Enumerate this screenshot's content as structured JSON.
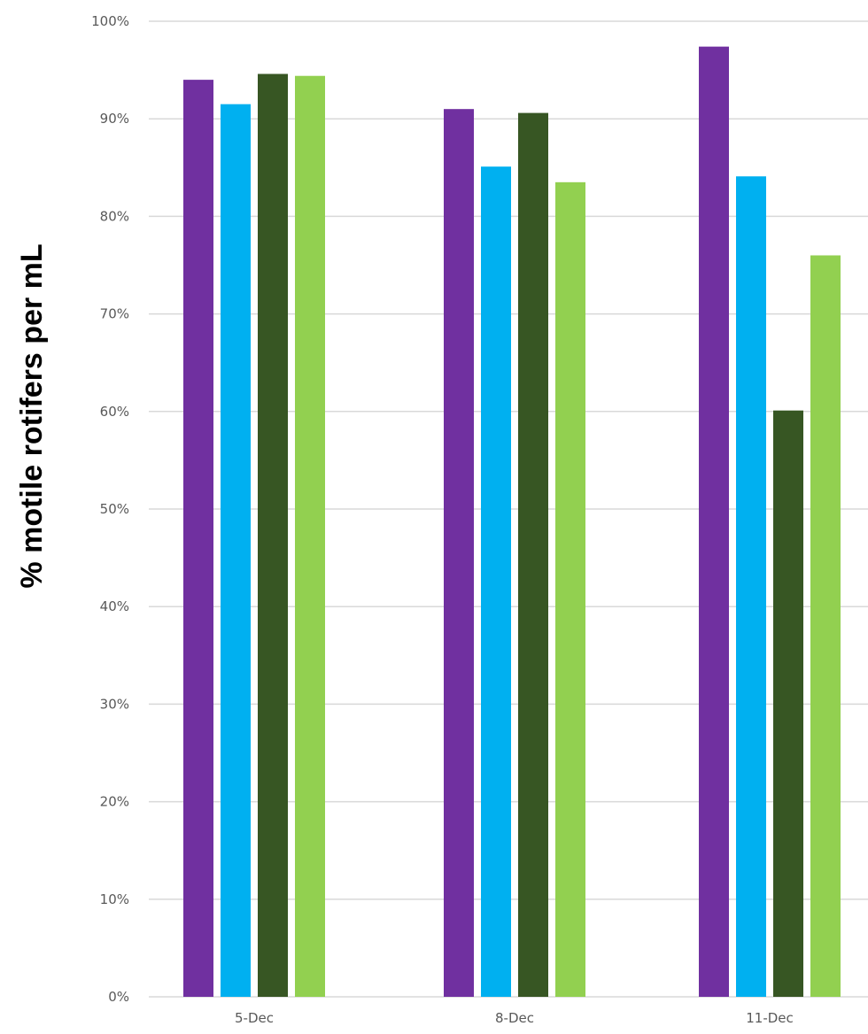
{
  "chart_data": {
    "type": "bar",
    "title": "",
    "xlabel": "",
    "ylabel": "% motile rotifers per mL",
    "ylim": [
      0,
      100
    ],
    "y_ticks": [
      0,
      10,
      20,
      30,
      40,
      50,
      60,
      70,
      80,
      90,
      100
    ],
    "y_tick_labels": [
      "0%",
      "10%",
      "20%",
      "30%",
      "40%",
      "50%",
      "60%",
      "70%",
      "80%",
      "90%",
      "100%"
    ],
    "categories": [
      "5-Dec",
      "8-Dec",
      "11-Dec"
    ],
    "grid": true,
    "legend": "none",
    "series": [
      {
        "color": "#7030A0",
        "values": [
          94,
          91,
          97.4
        ]
      },
      {
        "color": "#00B0F0",
        "values": [
          91.5,
          85.1,
          84.1
        ]
      },
      {
        "color": "#375623",
        "values": [
          94.6,
          90.6,
          60.1
        ]
      },
      {
        "color": "#92D050",
        "values": [
          94.4,
          83.5,
          76
        ]
      }
    ]
  }
}
